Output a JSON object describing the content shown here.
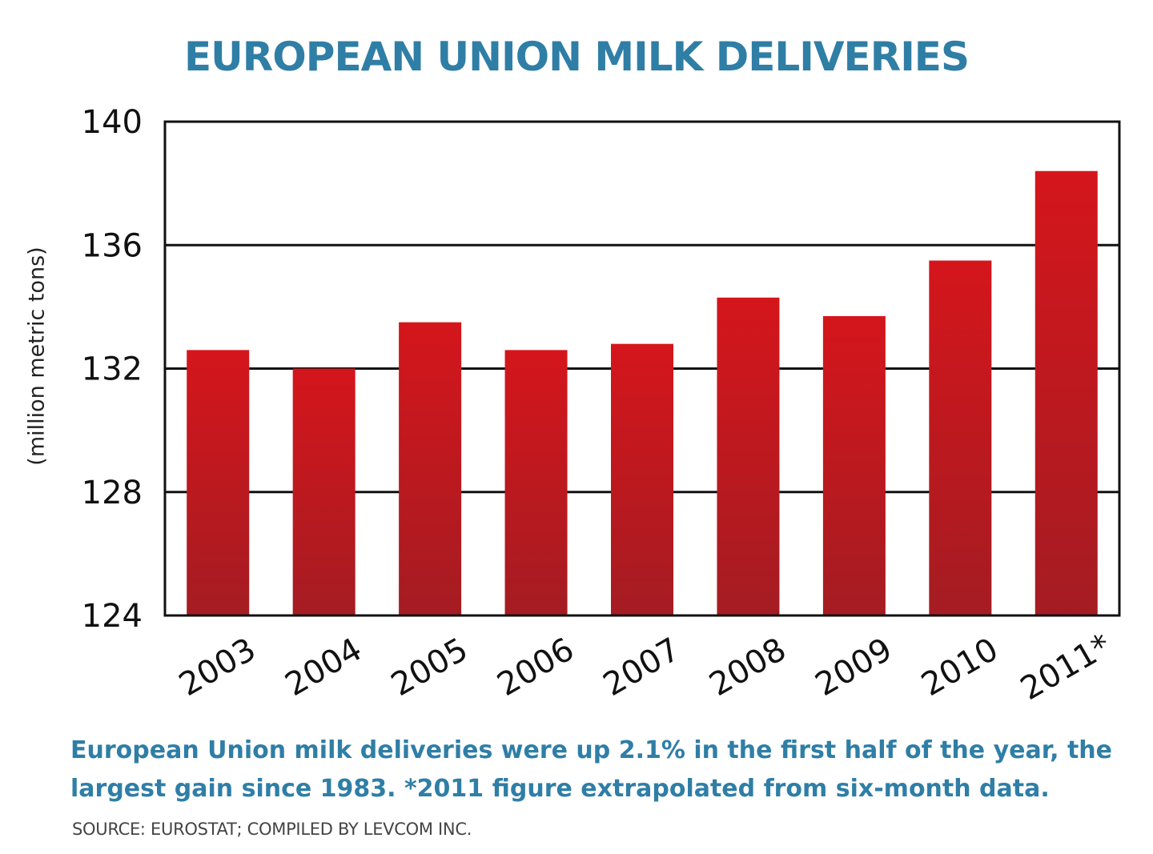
{
  "chart_data": {
    "type": "bar",
    "title": "EUROPEAN UNION MILK DELIVERIES",
    "ylabel": "(million metric tons)",
    "xlabel": "",
    "categories": [
      "2003",
      "2004",
      "2005",
      "2006",
      "2007",
      "2008",
      "2009",
      "2010",
      "2011*"
    ],
    "values": [
      132.6,
      132.0,
      133.5,
      132.6,
      132.8,
      134.3,
      133.7,
      135.5,
      138.4
    ],
    "ylim": [
      124,
      140
    ],
    "yticks": [
      "124",
      "128",
      "132",
      "136",
      "140"
    ],
    "grid": true,
    "legend": "none",
    "colors": {
      "bar_top": "#d4161c",
      "bar_bottom": "#a41c22"
    }
  },
  "caption": {
    "line1": "European Union milk deliveries were up 2.1% in the first half of the year, the",
    "line2": "largest gain since 1983.  *2011 figure extrapolated from six-month data."
  },
  "source": "SOURCE: EUROSTAT; COMPILED BY LEVCOM INC."
}
